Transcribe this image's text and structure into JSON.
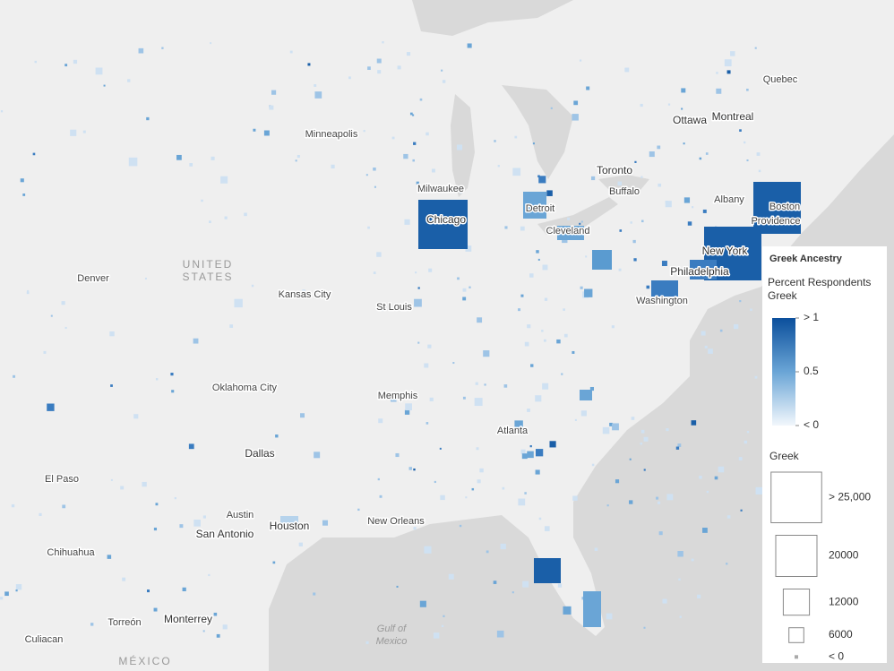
{
  "map": {
    "labels": [
      "Quebec",
      "Ottawa",
      "Montreal",
      "Minneapolis",
      "Toronto",
      "Milwaukee",
      "Buffalo",
      "Albany",
      "Boston",
      "Detroit",
      "Chicago",
      "Providence",
      "Cleveland",
      "New York",
      "UNITED",
      "STATES",
      "Denver",
      "Philadelphia",
      "Kansas City",
      "Washington",
      "St Louis",
      "Oklahoma City",
      "Memphis",
      "Atlanta",
      "Dallas",
      "El Paso",
      "Austin",
      "Houston",
      "New Orleans",
      "San Antonio",
      "Chihuahua",
      "Gulf of",
      "Mexico",
      "Torreón",
      "Monterrey",
      "Culiacan",
      "MÉXICO"
    ]
  },
  "legend": {
    "title": "Greek Ancestry",
    "color_title": "Percent Respondents Greek",
    "color_ticks": [
      {
        "value": 1,
        "label": "> 1"
      },
      {
        "value": 0.5,
        "label": "0.5"
      },
      {
        "value": 0,
        "label": "< 0"
      }
    ],
    "size_title": "Greek",
    "size_ticks": [
      {
        "value": 25000,
        "label": "> 25,000"
      },
      20000,
      12000,
      6000,
      {
        "value": 0,
        "label": "< 0"
      }
    ]
  }
}
